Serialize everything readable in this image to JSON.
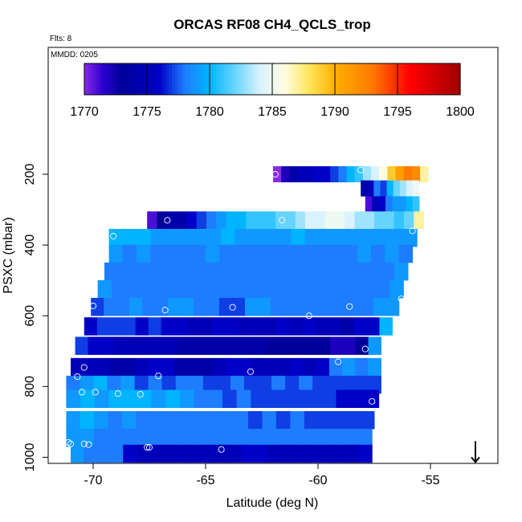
{
  "chart_data": {
    "type": "heatmap",
    "title": "ORCAS RF08 CH4_QCLS_trop",
    "flights_note": "Flts: 8",
    "date_note": "MMDD: 0205",
    "xlabel": "Latitude (deg N)",
    "ylabel": "PSXC (mbar)",
    "xlim": [
      -71.5,
      -53
    ],
    "ylim_inverted": [
      1000,
      120
    ],
    "x_ticks": [
      -70,
      -65,
      -60,
      -55
    ],
    "x_tick_labels": [
      "-70",
      "-65",
      "-60",
      "-55"
    ],
    "y_ticks": [
      200,
      400,
      600,
      800,
      1000
    ],
    "y_tick_labels": [
      "200",
      "400",
      "600",
      "800",
      "1000"
    ],
    "colorbar": {
      "min": 1770,
      "max": 1800,
      "tick_values": [
        1770,
        1775,
        1780,
        1785,
        1790,
        1795,
        1800
      ],
      "tick_labels": [
        "1770",
        "1775",
        "1780",
        "1785",
        "1790",
        "1795",
        "1800"
      ],
      "stops": [
        {
          "v": 1770,
          "c": "#8a2be2"
        },
        {
          "v": 1771.5,
          "c": "#2a00d0"
        },
        {
          "v": 1773,
          "c": "#00009a"
        },
        {
          "v": 1776,
          "c": "#0000c8"
        },
        {
          "v": 1778,
          "c": "#1e7cff"
        },
        {
          "v": 1780,
          "c": "#00b4ff"
        },
        {
          "v": 1782,
          "c": "#66d4ff"
        },
        {
          "v": 1784,
          "c": "#d8f2ff"
        },
        {
          "v": 1786,
          "c": "#fffde0"
        },
        {
          "v": 1788,
          "c": "#ffe45a"
        },
        {
          "v": 1790,
          "c": "#ffb000"
        },
        {
          "v": 1793,
          "c": "#ff7a00"
        },
        {
          "v": 1796,
          "c": "#ff0000"
        },
        {
          "v": 1800,
          "c": "#a00000"
        }
      ]
    },
    "bands": [
      {
        "p": 200,
        "lat_start": -62,
        "lat_end": -55.1,
        "values": [
          1770,
          1772,
          1774,
          1775,
          1775,
          1776,
          1776,
          1777,
          1778,
          1780,
          1781,
          1783,
          1784,
          1786,
          1789,
          1791,
          1793,
          1792,
          1787
        ]
      },
      {
        "p": 240,
        "lat_start": -58.1,
        "lat_end": -55.5,
        "values": [
          1774,
          1775,
          1778,
          1777,
          1780,
          1782,
          1783,
          1784,
          1785
        ]
      },
      {
        "p": 285,
        "lat_start": -57.9,
        "lat_end": -55.5,
        "values": [
          1771,
          1775,
          1776,
          1778,
          1779,
          1779,
          1780,
          1781
        ]
      },
      {
        "p": 330,
        "lat_start": -67.6,
        "lat_end": -55.3,
        "values": [
          1771,
          1773,
          1774,
          1774,
          1776,
          1777,
          1778,
          1779,
          1780,
          1780,
          1781,
          1781,
          1781,
          1782,
          1782,
          1783,
          1784,
          1784,
          1785,
          1785,
          1784,
          1783,
          1783,
          1782,
          1782,
          1781,
          1782,
          1787
        ]
      },
      {
        "p": 380,
        "lat_start": -69.3,
        "lat_end": -55.6,
        "values": [
          1780,
          1780,
          1780,
          1779,
          1779,
          1779,
          1779,
          1779,
          1780,
          1779,
          1779,
          1779,
          1779,
          1780,
          1779,
          1779,
          1779,
          1779,
          1779,
          1779,
          1779,
          1779
        ]
      },
      {
        "p": 425,
        "lat_start": -69.3,
        "lat_end": -55.8,
        "values": [
          1779,
          1778,
          1779,
          1778,
          1778,
          1778,
          1778,
          1779,
          1778,
          1778,
          1778,
          1778,
          1778,
          1778,
          1778,
          1778,
          1778,
          1778,
          1779,
          1778,
          1779,
          1778
        ]
      },
      {
        "p": 475,
        "lat_start": -69.5,
        "lat_end": -56,
        "values": [
          1778,
          1778,
          1778,
          1778,
          1778,
          1778,
          1778,
          1778,
          1778,
          1778,
          1778,
          1778,
          1778,
          1778,
          1778,
          1778,
          1778,
          1778,
          1778,
          1778,
          1778,
          1779
        ]
      },
      {
        "p": 525,
        "lat_start": -69.8,
        "lat_end": -56.2,
        "values": [
          1779,
          1778,
          1778,
          1778,
          1778,
          1778,
          1778,
          1778,
          1778,
          1778,
          1778,
          1778,
          1778,
          1778,
          1778,
          1778,
          1778,
          1778,
          1778,
          1778,
          1778,
          1779
        ]
      },
      {
        "p": 575,
        "lat_start": -70.1,
        "lat_end": -56.4,
        "values": [
          1777,
          1778,
          1778,
          1779,
          1778,
          1778,
          1779,
          1779,
          1778,
          1778,
          1777,
          1777,
          1779,
          1779,
          1778,
          1778,
          1778,
          1778,
          1778,
          1778,
          1778,
          1778,
          1779,
          1779
        ]
      },
      {
        "p": 630,
        "lat_start": -70.4,
        "lat_end": -56.7,
        "values": [
          1776,
          1777,
          1777,
          1777,
          1776,
          1777,
          1776,
          1776,
          1775,
          1775,
          1776,
          1776,
          1775,
          1775,
          1775,
          1776,
          1775,
          1776,
          1775,
          1775,
          1774,
          1776,
          1776,
          1780
        ]
      },
      {
        "p": 685,
        "lat_start": -70.8,
        "lat_end": -57.2,
        "values": [
          1777,
          1776,
          1776,
          1775,
          1775,
          1775,
          1775,
          1775,
          1774,
          1774,
          1774,
          1774,
          1774,
          1774,
          1774,
          1773,
          1773,
          1773,
          1773,
          1773,
          1772,
          1772,
          1773,
          1779
        ]
      },
      {
        "p": 745,
        "lat_start": -71,
        "lat_end": -57.2,
        "values": [
          1775,
          1775,
          1775,
          1774,
          1774,
          1775,
          1776,
          1776,
          1774,
          1774,
          1774,
          1775,
          1776,
          1776,
          1775,
          1775,
          1775,
          1776,
          1775,
          1776,
          1778,
          1779,
          1778,
          1779
        ]
      },
      {
        "p": 795,
        "lat_start": -71.2,
        "lat_end": -57.2,
        "values": [
          1778,
          1779,
          1780,
          1778,
          1779,
          1777,
          1778,
          1777,
          1778,
          1778,
          1777,
          1777,
          1778,
          1777,
          1777,
          1778,
          1777,
          1778,
          1777,
          1777,
          1777,
          1777,
          1777
        ]
      },
      {
        "p": 835,
        "lat_start": -71.2,
        "lat_end": -57.3,
        "values": [
          1779,
          1780,
          1779,
          1780,
          1780,
          1780,
          1779,
          1780,
          1779,
          1778,
          1778,
          1777,
          1778,
          1777,
          1777,
          1777,
          1777,
          1777,
          1777,
          1776,
          1776,
          1776
        ]
      },
      {
        "p": 895,
        "lat_start": -71.2,
        "lat_end": -57.5,
        "values": [
          1779,
          1780,
          1779,
          1778,
          1779,
          1778,
          1778,
          1778,
          1778,
          1778,
          1778,
          1778,
          1778,
          1777,
          1778,
          1777,
          1778,
          1777,
          1777,
          1777,
          1777,
          1777
        ]
      },
      {
        "p": 945,
        "lat_start": -71.2,
        "lat_end": -57.6,
        "values": [
          1779,
          1779,
          1778,
          1778,
          1778,
          1778,
          1778,
          1778,
          1778,
          1778,
          1778,
          1778,
          1778,
          1778,
          1778,
          1778,
          1778,
          1778,
          1778,
          1778,
          1778,
          1778
        ]
      },
      {
        "p": 990,
        "lat_start": -71,
        "lat_end": -57.6,
        "values": [
          1779,
          1778,
          1778,
          1778,
          1776,
          1775,
          1775,
          1775,
          1775,
          1775,
          1775,
          1775,
          1775,
          1776,
          1776,
          1775,
          1775,
          1775,
          1775,
          1775,
          1775,
          1775,
          1776
        ]
      }
    ],
    "markers": [
      {
        "lat": -61.9,
        "p": 200
      },
      {
        "lat": -55.1,
        "p": 200
      },
      {
        "lat": -58.1,
        "p": 188
      },
      {
        "lat": -66.7,
        "p": 330
      },
      {
        "lat": -61.6,
        "p": 330
      },
      {
        "lat": -55.8,
        "p": 360
      },
      {
        "lat": -69.1,
        "p": 375
      },
      {
        "lat": -56.3,
        "p": 552
      },
      {
        "lat": -70,
        "p": 572
      },
      {
        "lat": -66.8,
        "p": 584
      },
      {
        "lat": -63.8,
        "p": 576
      },
      {
        "lat": -60.4,
        "p": 600
      },
      {
        "lat": -58.6,
        "p": 574
      },
      {
        "lat": -56.8,
        "p": 676
      },
      {
        "lat": -57.9,
        "p": 694
      },
      {
        "lat": -59.1,
        "p": 730
      },
      {
        "lat": -70.4,
        "p": 746
      },
      {
        "lat": -70.7,
        "p": 772
      },
      {
        "lat": -67.1,
        "p": 770
      },
      {
        "lat": -63,
        "p": 758
      },
      {
        "lat": -71.4,
        "p": 816
      },
      {
        "lat": -70.5,
        "p": 816
      },
      {
        "lat": -69.9,
        "p": 816
      },
      {
        "lat": -68.9,
        "p": 820
      },
      {
        "lat": -67.9,
        "p": 822
      },
      {
        "lat": -57.6,
        "p": 842
      },
      {
        "lat": -71.1,
        "p": 958
      },
      {
        "lat": -71,
        "p": 962
      },
      {
        "lat": -70.4,
        "p": 962
      },
      {
        "lat": -70.2,
        "p": 964
      },
      {
        "lat": -67.6,
        "p": 972
      },
      {
        "lat": -67.5,
        "p": 972
      },
      {
        "lat": -64.3,
        "p": 978
      },
      {
        "lat": -57.4,
        "p": 976
      },
      {
        "lat": -57.3,
        "p": 976
      }
    ],
    "arrow_marker": {
      "lat": -53,
      "p": 1000
    }
  }
}
